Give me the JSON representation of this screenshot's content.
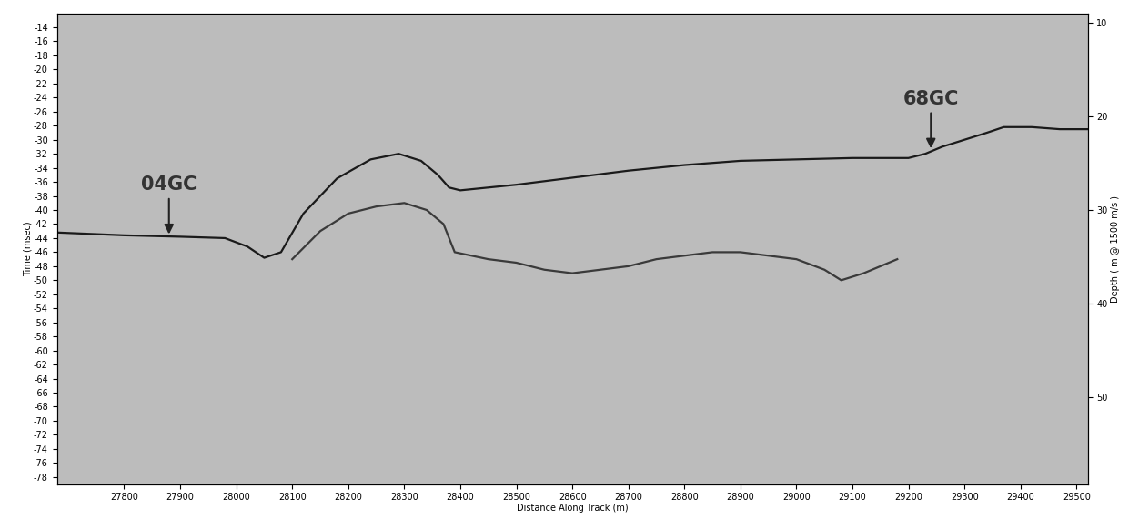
{
  "chart_data": {
    "type": "line",
    "x_label": "Distance Along Track (m)",
    "y_label": "Time (msec)",
    "y2_label": "Depth ( m @ 1500 m/s )",
    "xlim": [
      27680,
      29520
    ],
    "xticks": [
      27800,
      27900,
      28000,
      28100,
      28200,
      28300,
      28400,
      28500,
      28600,
      28700,
      28800,
      28900,
      29000,
      29100,
      29200,
      29300,
      29400,
      29500
    ],
    "ylim": [
      -79,
      -12
    ],
    "yticks": [
      -14,
      -16,
      -18,
      -20,
      -22,
      -24,
      -26,
      -28,
      -30,
      -32,
      -34,
      -36,
      -38,
      -40,
      -42,
      -44,
      -46,
      -48,
      -50,
      -52,
      -54,
      -56,
      -58,
      -60,
      -62,
      -64,
      -66,
      -68,
      -70,
      -72,
      -74,
      -76,
      -78
    ],
    "y2lim": [
      59.25,
      9
    ],
    "y2ticks": [
      10,
      20,
      30,
      40,
      50
    ],
    "grid": false,
    "color": "#bcbcbc",
    "series": [
      {
        "color": "#1a1a1a",
        "line_style": "solid",
        "x": [
          27680,
          27800,
          27900,
          27980,
          28020,
          28050,
          28080,
          28120,
          28180,
          28240,
          28290,
          28330,
          28360,
          28380,
          28400,
          28500,
          28600,
          28700,
          28750,
          28800,
          28900,
          29000,
          29100,
          29200,
          29230,
          29260,
          29300,
          29340,
          29370,
          29420,
          29470,
          29520
        ],
        "values": [
          -43.2,
          -43.6,
          -43.8,
          -44.0,
          -45.2,
          -46.8,
          -46.0,
          -40.5,
          -35.5,
          -32.8,
          -32.0,
          -33.0,
          -35.0,
          -36.8,
          -37.2,
          -36.4,
          -35.4,
          -34.4,
          -34.0,
          -33.6,
          -33.0,
          -32.8,
          -32.6,
          -32.6,
          -32.0,
          -31.0,
          -30.0,
          -29.0,
          -28.2,
          -28.2,
          -28.5,
          -28.5
        ]
      },
      {
        "color": "#3a3a3a",
        "line_style": "solid",
        "x": [
          28100,
          28150,
          28200,
          28250,
          28300,
          28340,
          28370,
          28390,
          28450,
          28500,
          28550,
          28600,
          28650,
          28700,
          28750,
          28800,
          28850,
          28900,
          28950,
          29000,
          29050,
          29080,
          29120,
          29180
        ],
        "values": [
          -47.0,
          -43.0,
          -40.5,
          -39.5,
          -39.0,
          -40.0,
          -42.0,
          -46.0,
          -47.0,
          -47.5,
          -48.5,
          -49.0,
          -48.5,
          -48.0,
          -47.0,
          -46.5,
          -46.0,
          -46.0,
          -46.5,
          -47.0,
          -48.5,
          -50.0,
          -49.0,
          -47.0
        ]
      }
    ],
    "annotations": [
      {
        "text": "04GC",
        "x": 27880,
        "y": -43.8
      },
      {
        "text": "68GC",
        "x": 29240,
        "y": -31.6
      }
    ]
  }
}
